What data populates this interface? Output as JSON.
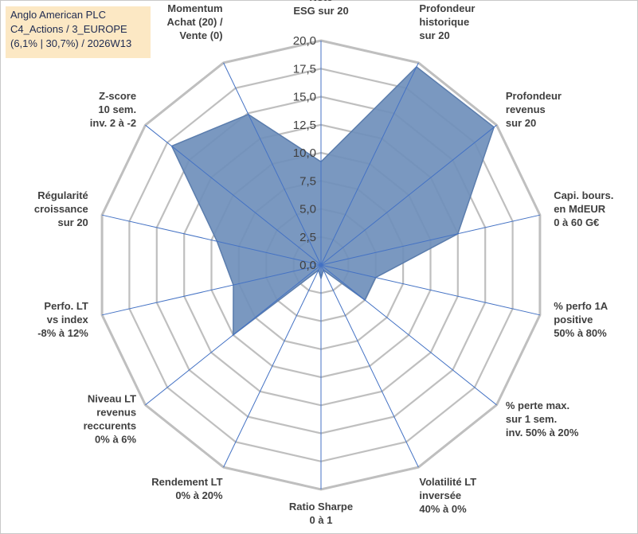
{
  "header": {
    "lines": [
      "Anglo American PLC",
      "C4_Actions / 3_EUROPE",
      "(6,1% | 30,7%) / 2026W13"
    ]
  },
  "chart_data": {
    "type": "radar",
    "title": "Anglo American PLC",
    "rmin": 0,
    "rmax": 20,
    "rstep": 2.5,
    "tick_labels": [
      "0,0",
      "2,5",
      "5,0",
      "7,5",
      "10,0",
      "12,5",
      "15,0",
      "17,5",
      "20,0"
    ],
    "axes": [
      {
        "label": [
          "Note",
          "ESG sur 20"
        ],
        "value": 9.2
      },
      {
        "label": [
          "Profondeur",
          "historique",
          "sur 20"
        ],
        "value": 19.6
      },
      {
        "label": [
          "Profondeur",
          "revenus",
          "sur 20"
        ],
        "value": 19.7
      },
      {
        "label": [
          "Capi. bours.",
          "en MdEUR",
          "0 à 60 G€"
        ],
        "value": 12.5
      },
      {
        "label": [
          "% perfo 1A",
          "positive",
          "50% à 80%"
        ],
        "value": 5.0
      },
      {
        "label": [
          "% perte max.",
          "sur 1 sem.",
          "inv. 50% à 20%"
        ],
        "value": 5.0
      },
      {
        "label": [
          "Volatilité LT",
          "inversée",
          "40% à 0%"
        ],
        "value": 0.5
      },
      {
        "label": [
          "Ratio Sharpe",
          "0 à 1"
        ],
        "value": 1.2
      },
      {
        "label": [
          "Rendement LT",
          "0% à 20%"
        ],
        "value": 0.5
      },
      {
        "label": [
          "Niveau LT",
          "revenus",
          "reccurents",
          "0% à 6%"
        ],
        "value": 10.0
      },
      {
        "label": [
          "Perfo. LT",
          "vs index",
          "-8% à 12%"
        ],
        "value": 8.0
      },
      {
        "label": [
          "Régularité",
          "croissance",
          "sur 20"
        ],
        "value": 9.5
      },
      {
        "label": [
          "Z-score",
          "10 sem.",
          "inv. 2 à -2"
        ],
        "value": 17.0
      },
      {
        "label": [
          "Momentum",
          "Achat (20) /",
          "Vente (0)"
        ],
        "value": 14.9
      }
    ],
    "colors": {
      "fill": "#6f8fbb",
      "stroke": "#5b7dad",
      "grid": "#bfbfbf",
      "spoke": "#4472c4"
    }
  }
}
